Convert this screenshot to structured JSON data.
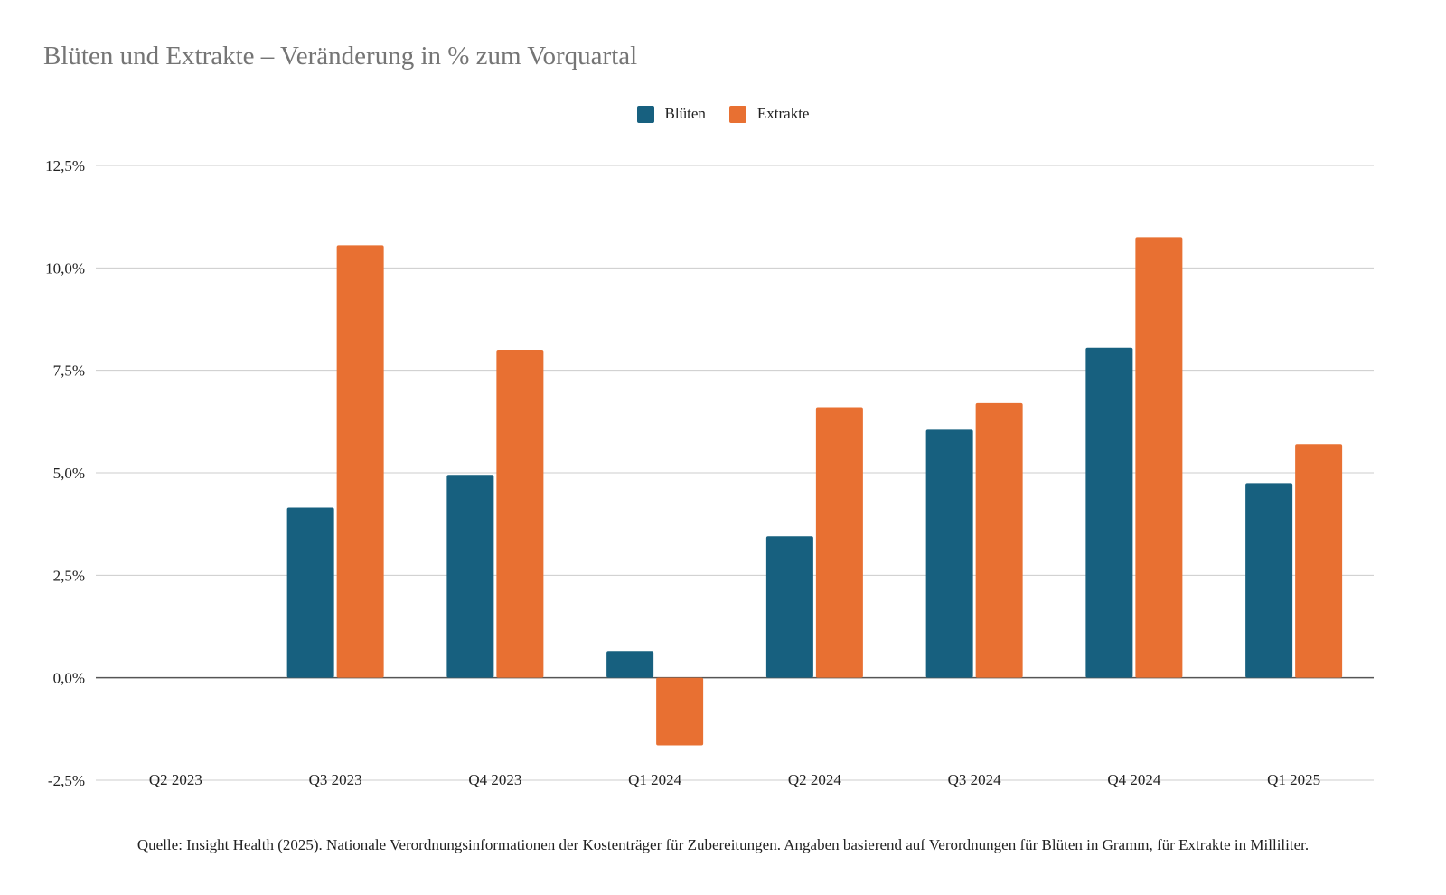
{
  "chart_data": {
    "type": "bar",
    "title": "Blüten und Extrakte – Veränderung in % zum Vorquartal",
    "xlabel": "",
    "ylabel": "",
    "categories": [
      "Q2 2023",
      "Q3 2023",
      "Q4 2023",
      "Q1 2024",
      "Q2 2024",
      "Q3 2024",
      "Q4 2024",
      "Q1 2025"
    ],
    "series": [
      {
        "name": "Blüten",
        "color": "#17607f",
        "values": [
          null,
          4.15,
          4.95,
          0.65,
          3.45,
          6.05,
          8.05,
          4.75
        ]
      },
      {
        "name": "Extrakte",
        "color": "#e87032",
        "values": [
          null,
          10.55,
          8.0,
          -1.65,
          6.6,
          6.7,
          10.75,
          5.7
        ]
      }
    ],
    "ylim": [
      -2.5,
      12.5
    ],
    "yticks": [
      -2.5,
      0,
      2.5,
      5,
      7.5,
      10,
      12.5
    ],
    "ytick_labels": [
      "-2,5%",
      "0,0%",
      "2,5%",
      "5,0%",
      "7,5%",
      "10,0%",
      "12,5%"
    ],
    "grid": true,
    "legend_position": "top-center",
    "source": "Quelle: Insight Health (2025). Nationale Verordnungsinformationen der Kostenträger für Zubereitungen. Angaben basierend auf Verordnungen für Blüten in Gramm, für Extrakte in Milliliter."
  }
}
